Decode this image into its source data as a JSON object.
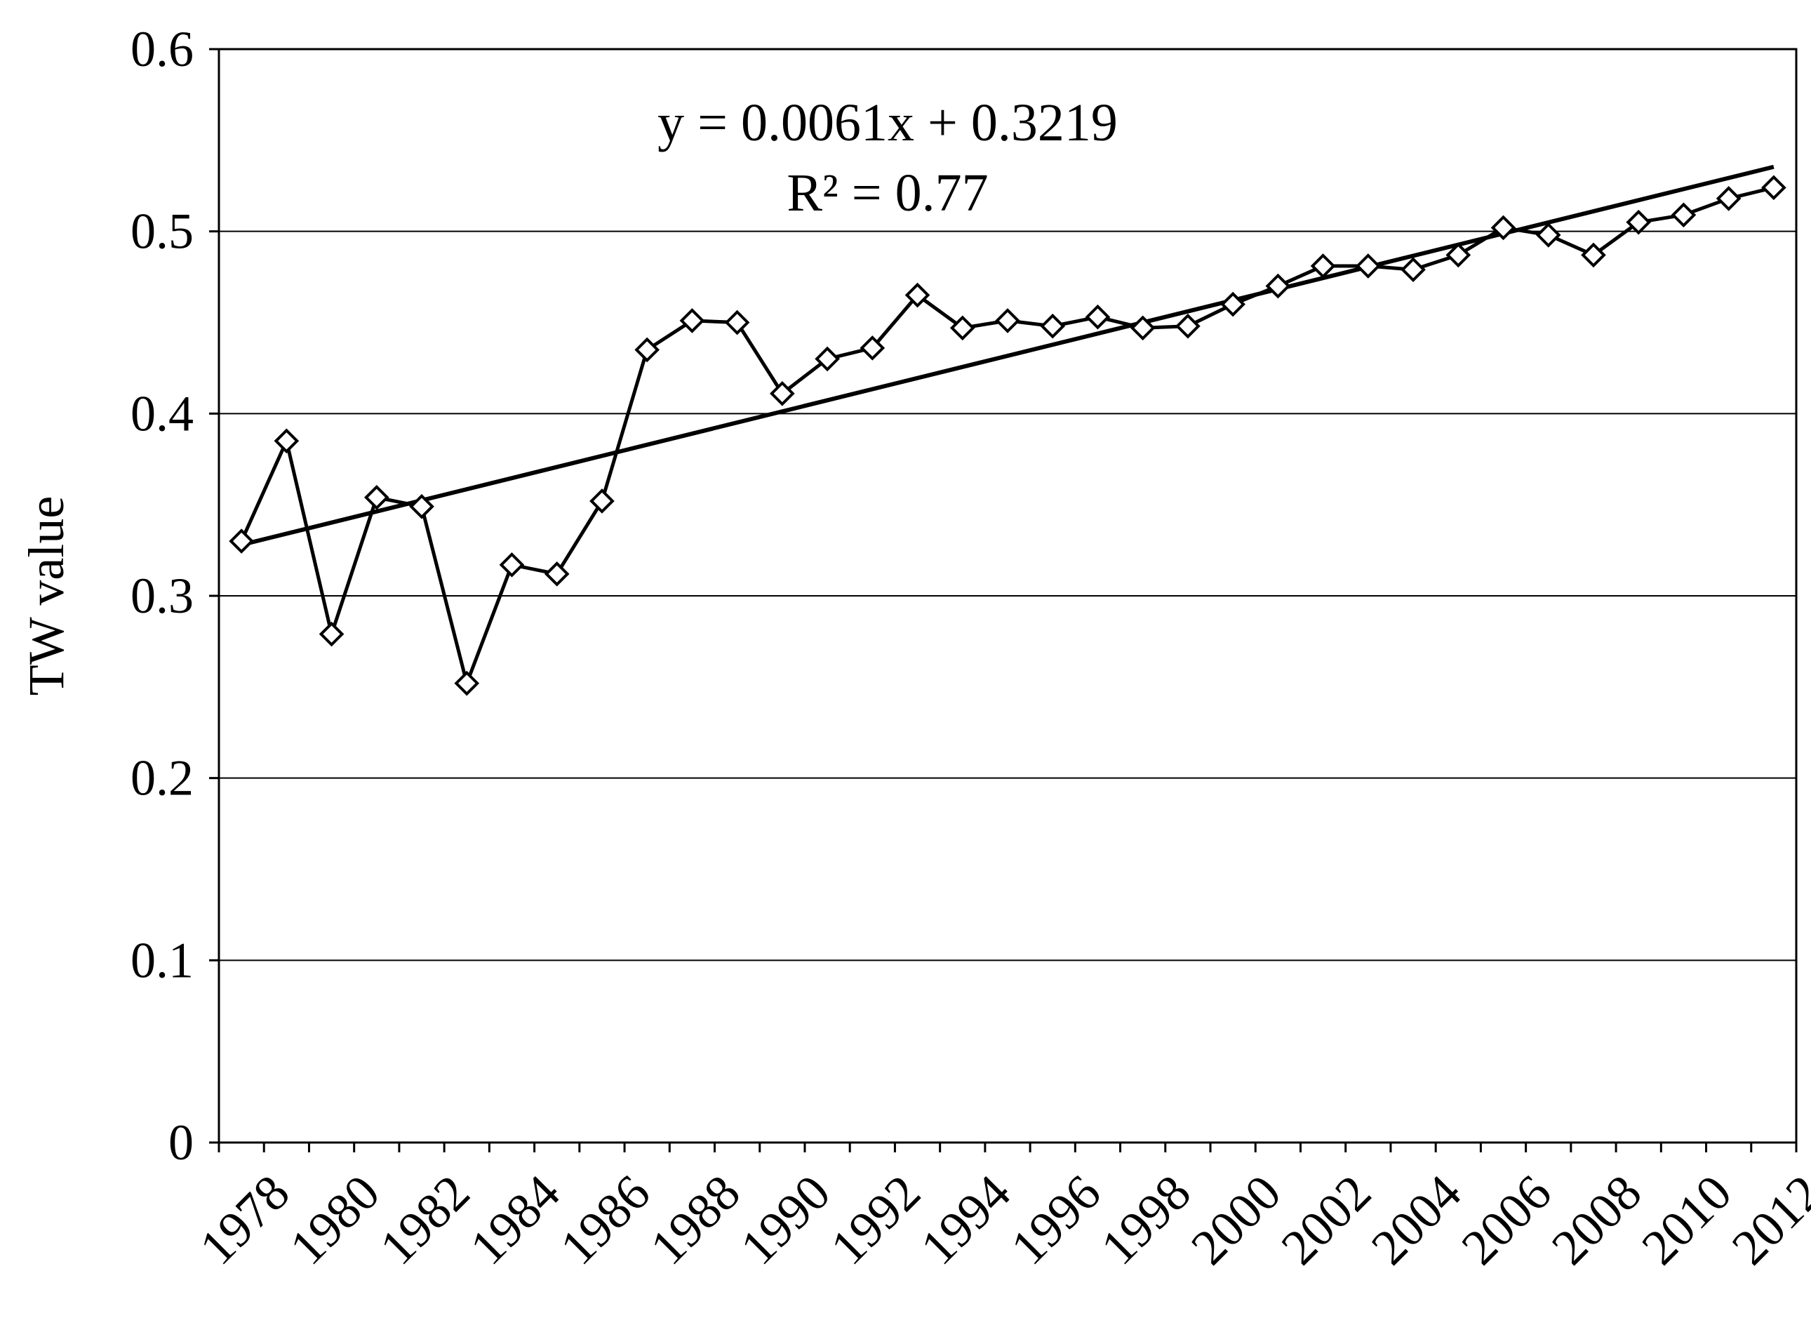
{
  "chart_data": {
    "type": "line",
    "title": "",
    "xlabel": "",
    "ylabel": "TW value",
    "ylim": [
      0,
      0.6
    ],
    "yticks": [
      "0",
      "0.1",
      "0.2",
      "0.3",
      "0.4",
      "0.5",
      "0.6"
    ],
    "xtick_labels": [
      "1978",
      "1980",
      "1982",
      "1984",
      "1986",
      "1988",
      "1990",
      "1992",
      "1994",
      "1996",
      "1998",
      "2000",
      "2002",
      "2004",
      "2006",
      "2008",
      "2010",
      "2012"
    ],
    "grid": "horizontal",
    "legend": "none",
    "series": [
      {
        "marker": "diamond-open",
        "color": "#000000",
        "x": [
          1978,
          1979,
          1980,
          1981,
          1982,
          1983,
          1984,
          1985,
          1986,
          1987,
          1988,
          1989,
          1990,
          1991,
          1992,
          1993,
          1994,
          1995,
          1996,
          1997,
          1998,
          1999,
          2000,
          2001,
          2002,
          2003,
          2004,
          2005,
          2006,
          2007,
          2008,
          2009,
          2010,
          2011,
          2012
        ],
        "values": [
          0.33,
          0.385,
          0.279,
          0.354,
          0.349,
          0.252,
          0.317,
          0.312,
          0.352,
          0.435,
          0.451,
          0.45,
          0.411,
          0.43,
          0.436,
          0.465,
          0.447,
          0.451,
          0.448,
          0.453,
          0.447,
          0.448,
          0.46,
          0.47,
          0.481,
          0.481,
          0.479,
          0.487,
          0.502,
          0.498,
          0.487,
          0.505,
          0.509,
          0.518,
          0.524
        ]
      }
    ],
    "trendline": {
      "slope": 0.0061,
      "intercept": 0.3219,
      "equation_label": "y = 0.0061x + 0.3219",
      "r2_label": "R² = 0.77"
    }
  }
}
